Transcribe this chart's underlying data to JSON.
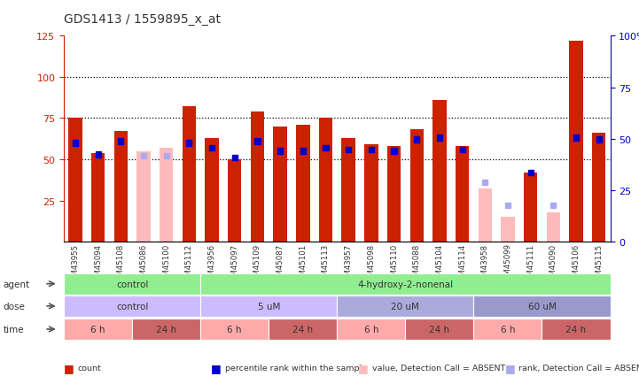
{
  "title": "GDS1413 / 1559895_x_at",
  "samples": [
    "GSM43955",
    "GSM45094",
    "GSM45108",
    "GSM45086",
    "GSM45100",
    "GSM45112",
    "GSM43956",
    "GSM45097",
    "GSM45109",
    "GSM45087",
    "GSM45101",
    "GSM45113",
    "GSM43957",
    "GSM45098",
    "GSM45110",
    "GSM45088",
    "GSM45104",
    "GSM45114",
    "GSM43958",
    "GSM45099",
    "GSM45111",
    "GSM45090",
    "GSM45106",
    "GSM45115"
  ],
  "count_values": [
    75,
    54,
    67,
    0,
    0,
    82,
    63,
    50,
    79,
    70,
    71,
    75,
    63,
    59,
    58,
    68,
    86,
    58,
    0,
    0,
    42,
    0,
    122,
    66
  ],
  "count_absent": [
    false,
    false,
    false,
    true,
    true,
    false,
    false,
    false,
    false,
    false,
    false,
    false,
    false,
    false,
    false,
    false,
    false,
    false,
    true,
    true,
    false,
    true,
    false,
    false
  ],
  "count_absent_values": [
    0,
    0,
    0,
    55,
    57,
    0,
    0,
    0,
    0,
    0,
    0,
    0,
    0,
    0,
    0,
    0,
    0,
    0,
    32,
    15,
    0,
    18,
    0,
    0
  ],
  "percentile_values": [
    60,
    53,
    61,
    0,
    0,
    60,
    57,
    51,
    61,
    55,
    55,
    57,
    56,
    56,
    55,
    62,
    63,
    56,
    0,
    0,
    42,
    0,
    63,
    62
  ],
  "percentile_absent": [
    false,
    false,
    false,
    true,
    true,
    false,
    false,
    false,
    false,
    false,
    false,
    false,
    false,
    false,
    false,
    false,
    false,
    false,
    true,
    true,
    false,
    true,
    false,
    false
  ],
  "percentile_absent_values": [
    0,
    0,
    0,
    52,
    52,
    0,
    0,
    0,
    0,
    0,
    0,
    0,
    0,
    0,
    0,
    0,
    0,
    0,
    36,
    22,
    0,
    22,
    0,
    0
  ],
  "agent_groups": [
    {
      "label": "control",
      "start": 0,
      "end": 5,
      "color": "#90ee90"
    },
    {
      "label": "4-hydroxy-2-nonenal",
      "start": 6,
      "end": 23,
      "color": "#90ee90"
    }
  ],
  "dose_groups": [
    {
      "label": "control",
      "start": 0,
      "end": 5,
      "color": "#ccbbff"
    },
    {
      "label": "5 uM",
      "start": 6,
      "end": 11,
      "color": "#ccbbff"
    },
    {
      "label": "20 uM",
      "start": 12,
      "end": 17,
      "color": "#aaaadd"
    },
    {
      "label": "60 uM",
      "start": 18,
      "end": 23,
      "color": "#9999cc"
    }
  ],
  "time_groups": [
    {
      "label": "6 h",
      "start": 0,
      "end": 2,
      "color": "#ffaaaa"
    },
    {
      "label": "24 h",
      "start": 3,
      "end": 5,
      "color": "#cc6666"
    },
    {
      "label": "6 h",
      "start": 6,
      "end": 8,
      "color": "#ffaaaa"
    },
    {
      "label": "24 h",
      "start": 9,
      "end": 11,
      "color": "#cc6666"
    },
    {
      "label": "6 h",
      "start": 12,
      "end": 14,
      "color": "#ffaaaa"
    },
    {
      "label": "24 h",
      "start": 15,
      "end": 17,
      "color": "#cc6666"
    },
    {
      "label": "6 h",
      "start": 18,
      "end": 20,
      "color": "#ffaaaa"
    },
    {
      "label": "24 h",
      "start": 21,
      "end": 23,
      "color": "#cc6666"
    }
  ],
  "ylim_left": [
    0,
    125
  ],
  "bar_color": "#cc2200",
  "bar_absent_color": "#ffbbbb",
  "percentile_color": "#0000cc",
  "percentile_absent_color": "#aaaaee",
  "bg_color": "#ffffff",
  "left_axis_color": "#cc2200",
  "right_axis_color": "#0000cc"
}
